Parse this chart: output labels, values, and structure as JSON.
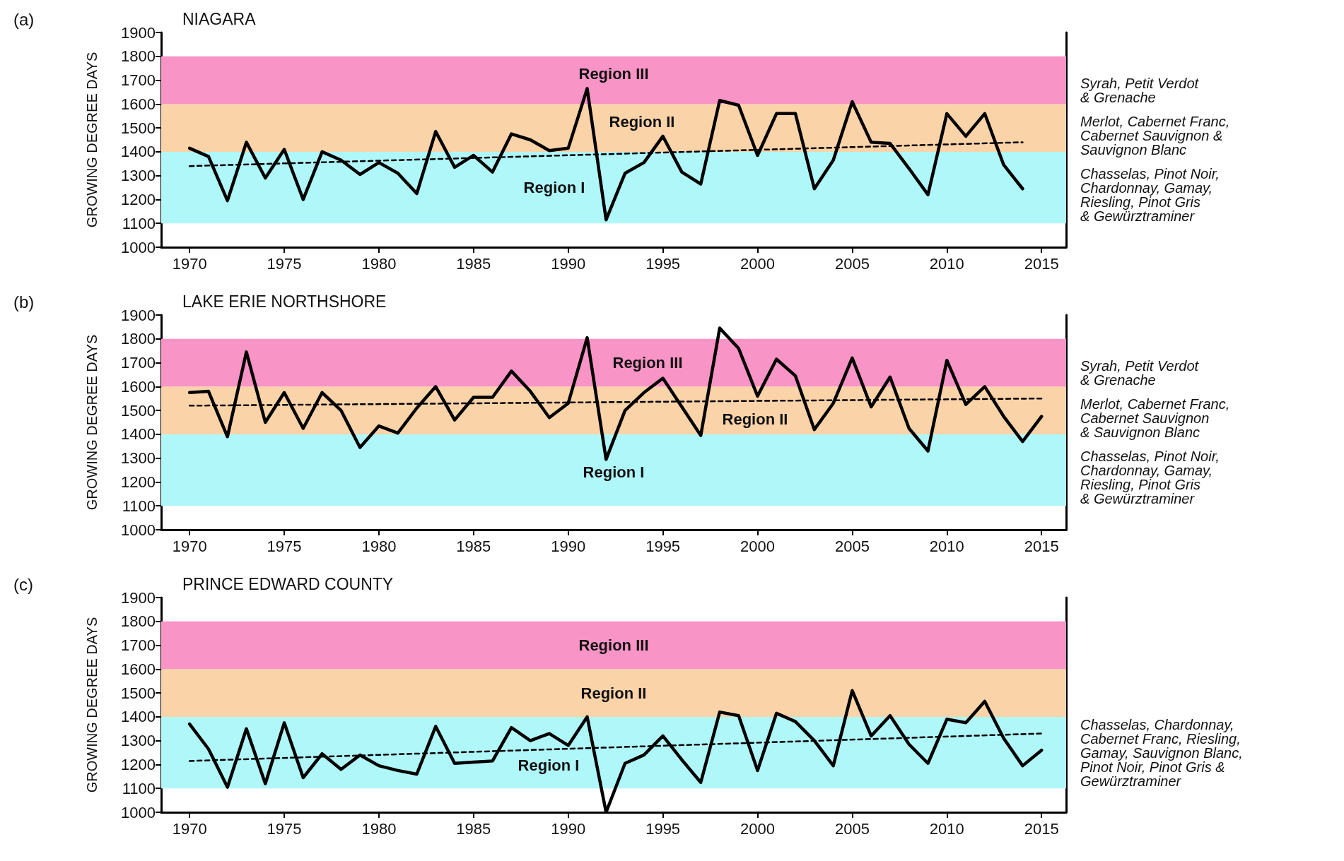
{
  "chart_data": [
    {
      "type": "line",
      "subtitle": "(a)",
      "title": "NIAGARA",
      "ylabel": "GROWING DEGREE DAYS",
      "xlim": [
        1968.5,
        2016.3
      ],
      "xticks": [
        1970,
        1975,
        1980,
        1985,
        1990,
        1995,
        2000,
        2005,
        2010,
        2015
      ],
      "ylim": [
        1000,
        1900
      ],
      "yticks": [
        1000,
        1100,
        1200,
        1300,
        1400,
        1500,
        1600,
        1700,
        1800,
        1900
      ],
      "x": [
        1970,
        1971,
        1972,
        1973,
        1974,
        1975,
        1976,
        1977,
        1978,
        1979,
        1980,
        1981,
        1982,
        1983,
        1984,
        1985,
        1986,
        1987,
        1988,
        1989,
        1990,
        1991,
        1992,
        1993,
        1994,
        1995,
        1996,
        1997,
        1998,
        1999,
        2000,
        2001,
        2002,
        2003,
        2004,
        2005,
        2006,
        2007,
        2008,
        2009,
        2010,
        2011,
        2012,
        2013,
        2014
      ],
      "marker": "none",
      "series": [
        {
          "color": "#000000",
          "line_style": "solid",
          "values": [
            1415,
            1380,
            1195,
            1440,
            1290,
            1410,
            1200,
            1400,
            1365,
            1305,
            1355,
            1310,
            1225,
            1485,
            1335,
            1385,
            1315,
            1475,
            1450,
            1405,
            1415,
            1665,
            1115,
            1310,
            1355,
            1465,
            1315,
            1265,
            1615,
            1595,
            1385,
            1560,
            1560,
            1245,
            1365,
            1610,
            1440,
            1435,
            1330,
            1220,
            1560,
            1465,
            1560,
            1345,
            1245
          ]
        },
        {
          "type": "line",
          "color": "#000000",
          "line_style": "dashed",
          "x": [
            1970,
            2014
          ],
          "values": [
            1340,
            1440
          ]
        }
      ],
      "bands": [
        {
          "axis": "y",
          "from": 1100,
          "to": 1400,
          "label": "Region I",
          "color": "#b0f7fa"
        },
        {
          "axis": "y",
          "from": 1400,
          "to": 1600,
          "label": "Region II",
          "color": "#fbd3a9"
        },
        {
          "axis": "y",
          "from": 1600,
          "to": 1800,
          "label": "Region III",
          "color": "#f994c6"
        }
      ],
      "annotations": [
        "Syrah, Petit Verdot\n& Grenache",
        "Merlot, Cabernet Franc,\nCabernet Sauvignon &\nSauvignon Blanc",
        "Chasselas, Pinot Noir,\nChardonnay, Gamay,\nRiesling, Pinot Gris\n& Gewürztraminer"
      ]
    },
    {
      "type": "line",
      "subtitle": "(b)",
      "title": "LAKE ERIE NORTHSHORE",
      "ylabel": "GROWING DEGREE DAYS",
      "xlim": [
        1968.5,
        2016.3
      ],
      "xticks": [
        1970,
        1975,
        1980,
        1985,
        1990,
        1995,
        2000,
        2005,
        2010,
        2015
      ],
      "ylim": [
        1000,
        1900
      ],
      "yticks": [
        1000,
        1100,
        1200,
        1300,
        1400,
        1500,
        1600,
        1700,
        1800,
        1900
      ],
      "x": [
        1970,
        1971,
        1972,
        1973,
        1974,
        1975,
        1976,
        1977,
        1978,
        1979,
        1980,
        1981,
        1982,
        1983,
        1984,
        1985,
        1986,
        1987,
        1988,
        1989,
        1990,
        1991,
        1992,
        1993,
        1994,
        1995,
        1996,
        1997,
        1998,
        1999,
        2000,
        2001,
        2002,
        2003,
        2004,
        2005,
        2006,
        2007,
        2008,
        2009,
        2010,
        2011,
        2012,
        2013,
        2014,
        2015
      ],
      "marker": "none",
      "series": [
        {
          "color": "#000000",
          "line_style": "solid",
          "values": [
            1575,
            1580,
            1390,
            1745,
            1450,
            1575,
            1425,
            1575,
            1500,
            1345,
            1435,
            1405,
            1510,
            1600,
            1460,
            1555,
            1555,
            1665,
            1580,
            1470,
            1530,
            1805,
            1295,
            1500,
            1575,
            1635,
            1515,
            1395,
            1845,
            1760,
            1560,
            1715,
            1645,
            1420,
            1530,
            1720,
            1515,
            1640,
            1425,
            1330,
            1710,
            1525,
            1600,
            1475,
            1370,
            1475
          ]
        },
        {
          "type": "line",
          "color": "#000000",
          "line_style": "dashed",
          "x": [
            1970,
            2015
          ],
          "values": [
            1520,
            1550
          ]
        }
      ],
      "bands": [
        {
          "axis": "y",
          "from": 1100,
          "to": 1400,
          "label": "Region I",
          "color": "#b0f7fa"
        },
        {
          "axis": "y",
          "from": 1400,
          "to": 1600,
          "label": "Region II",
          "color": "#fbd3a9"
        },
        {
          "axis": "y",
          "from": 1600,
          "to": 1800,
          "label": "Region III",
          "color": "#f994c6"
        }
      ],
      "annotations": [
        "Syrah, Petit Verdot\n& Grenache",
        "Merlot, Cabernet Franc,\nCabernet Sauvignon\n& Sauvignon Blanc",
        "Chasselas, Pinot Noir,\nChardonnay, Gamay,\nRiesling, Pinot Gris\n& Gewürztraminer"
      ]
    },
    {
      "type": "line",
      "subtitle": "(c)",
      "title": "PRINCE EDWARD COUNTY",
      "ylabel": "GROWING DEGREE DAYS",
      "xlim": [
        1968.5,
        2016.3
      ],
      "xticks": [
        1970,
        1975,
        1980,
        1985,
        1990,
        1995,
        2000,
        2005,
        2010,
        2015
      ],
      "ylim": [
        1000,
        1900
      ],
      "yticks": [
        1000,
        1100,
        1200,
        1300,
        1400,
        1500,
        1600,
        1700,
        1800,
        1900
      ],
      "x": [
        1970,
        1971,
        1972,
        1973,
        1974,
        1975,
        1976,
        1977,
        1978,
        1979,
        1980,
        1981,
        1982,
        1983,
        1984,
        1985,
        1986,
        1987,
        1988,
        1989,
        1990,
        1991,
        1992,
        1993,
        1994,
        1995,
        1996,
        1997,
        1998,
        1999,
        2000,
        2001,
        2002,
        2003,
        2004,
        2005,
        2006,
        2007,
        2008,
        2009,
        2010,
        2011,
        2012,
        2013,
        2014,
        2015
      ],
      "marker": "none",
      "series": [
        {
          "color": "#000000",
          "line_style": "solid",
          "values": [
            1370,
            1265,
            1105,
            1350,
            1120,
            1375,
            1145,
            1245,
            1180,
            1240,
            1195,
            1175,
            1160,
            1360,
            1205,
            1210,
            1215,
            1355,
            1300,
            1330,
            1280,
            1400,
            1000,
            1205,
            1240,
            1320,
            1220,
            1125,
            1420,
            1405,
            1175,
            1415,
            1380,
            1300,
            1195,
            1510,
            1320,
            1405,
            1285,
            1205,
            1390,
            1375,
            1465,
            1310,
            1195,
            1260
          ]
        },
        {
          "type": "line",
          "color": "#000000",
          "line_style": "dashed",
          "x": [
            1970,
            2015
          ],
          "values": [
            1215,
            1330
          ]
        }
      ],
      "bands": [
        {
          "axis": "y",
          "from": 1100,
          "to": 1400,
          "label": "Region I",
          "color": "#b0f7fa"
        },
        {
          "axis": "y",
          "from": 1400,
          "to": 1600,
          "label": "Region II",
          "color": "#fbd3a9"
        },
        {
          "axis": "y",
          "from": 1600,
          "to": 1800,
          "label": "Region III",
          "color": "#f994c6"
        }
      ],
      "annotations": [
        "Chasselas, Chardonnay,\nCabernet Franc, Riesling,\nGamay, Sauvignon Blanc,\nPinot Noir, Pinot Gris &\nGewürztraminer"
      ]
    }
  ]
}
